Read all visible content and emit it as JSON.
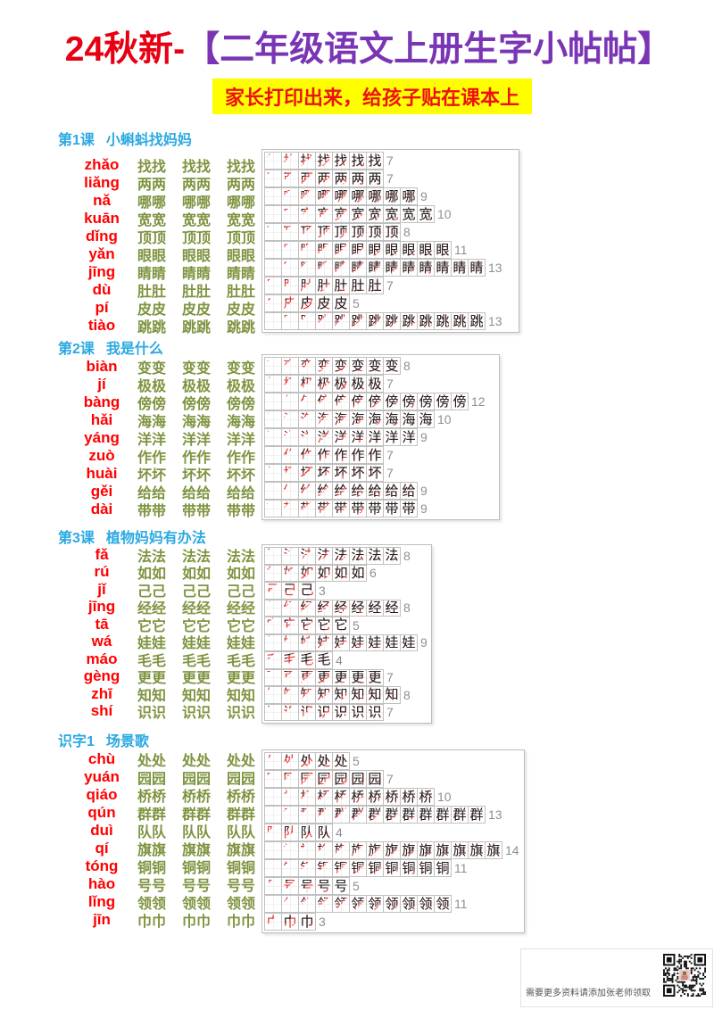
{
  "title": {
    "prefix": "24秋新-",
    "main": "【二年级语文上册生字小帖帖】"
  },
  "subtitle": {
    "text": "家长打印出来，给孩子贴在课本上"
  },
  "practice": {
    "columns": 3,
    "repeat": 2
  },
  "colors": {
    "title_prefix": "#e60012",
    "title_main": "#7a35b5",
    "header_blue": "#2ba9e1",
    "pinyin_red": "#ff0000",
    "practice_green": "#7e9440",
    "stroke_black": "#222222",
    "stroke_new_red": "#e03131",
    "count_gray": "#8f8f8f"
  },
  "sections": [
    {
      "lesson": "第1课",
      "title": "小蝌蚪找妈妈",
      "rows": [
        {
          "char": "找",
          "pinyin": "zhǎo",
          "strokes": 7
        },
        {
          "char": "两",
          "pinyin": "liǎng",
          "strokes": 7
        },
        {
          "char": "哪",
          "pinyin": "nǎ",
          "strokes": 9
        },
        {
          "char": "宽",
          "pinyin": "kuān",
          "strokes": 10
        },
        {
          "char": "顶",
          "pinyin": "dǐng",
          "strokes": 8
        },
        {
          "char": "眼",
          "pinyin": "yǎn",
          "strokes": 11
        },
        {
          "char": "睛",
          "pinyin": "jīng",
          "strokes": 13
        },
        {
          "char": "肚",
          "pinyin": "dù",
          "strokes": 7
        },
        {
          "char": "皮",
          "pinyin": "pí",
          "strokes": 5
        },
        {
          "char": "跳",
          "pinyin": "tiào",
          "strokes": 13
        }
      ]
    },
    {
      "lesson": "第2课",
      "title": "我是什么",
      "rows": [
        {
          "char": "变",
          "pinyin": "biàn",
          "strokes": 8
        },
        {
          "char": "极",
          "pinyin": "jí",
          "strokes": 7
        },
        {
          "char": "傍",
          "pinyin": "bàng",
          "strokes": 12
        },
        {
          "char": "海",
          "pinyin": "hǎi",
          "strokes": 10
        },
        {
          "char": "洋",
          "pinyin": "yáng",
          "strokes": 9
        },
        {
          "char": "作",
          "pinyin": "zuò",
          "strokes": 7
        },
        {
          "char": "坏",
          "pinyin": "huài",
          "strokes": 7
        },
        {
          "char": "给",
          "pinyin": "gěi",
          "strokes": 9
        },
        {
          "char": "带",
          "pinyin": "dài",
          "strokes": 9
        }
      ]
    },
    {
      "lesson": "第3课",
      "title": "植物妈妈有办法",
      "rows": [
        {
          "char": "法",
          "pinyin": "fǎ",
          "strokes": 8
        },
        {
          "char": "如",
          "pinyin": "rú",
          "strokes": 6
        },
        {
          "char": "己",
          "pinyin": "jǐ",
          "strokes": 3
        },
        {
          "char": "经",
          "pinyin": "jīng",
          "strokes": 8
        },
        {
          "char": "它",
          "pinyin": "tā",
          "strokes": 5
        },
        {
          "char": "娃",
          "pinyin": "wá",
          "strokes": 9
        },
        {
          "char": "毛",
          "pinyin": "máo",
          "strokes": 4
        },
        {
          "char": "更",
          "pinyin": "gèng",
          "strokes": 7
        },
        {
          "char": "知",
          "pinyin": "zhī",
          "strokes": 8
        },
        {
          "char": "识",
          "pinyin": "shí",
          "strokes": 7
        }
      ]
    },
    {
      "lesson": "识字1",
      "title": "场景歌",
      "rows": [
        {
          "char": "处",
          "pinyin": "chù",
          "strokes": 5
        },
        {
          "char": "园",
          "pinyin": "yuán",
          "strokes": 7
        },
        {
          "char": "桥",
          "pinyin": "qiáo",
          "strokes": 10
        },
        {
          "char": "群",
          "pinyin": "qún",
          "strokes": 13
        },
        {
          "char": "队",
          "pinyin": "duì",
          "strokes": 4
        },
        {
          "char": "旗",
          "pinyin": "qí",
          "strokes": 14
        },
        {
          "char": "铜",
          "pinyin": "tóng",
          "strokes": 11
        },
        {
          "char": "号",
          "pinyin": "hào",
          "strokes": 5
        },
        {
          "char": "领",
          "pinyin": "lǐng",
          "strokes": 11
        },
        {
          "char": "巾",
          "pinyin": "jīn",
          "strokes": 3
        }
      ]
    }
  ],
  "footer": {
    "note": "需要更多资料请添加张老师领取",
    "qr": "qr-code"
  }
}
